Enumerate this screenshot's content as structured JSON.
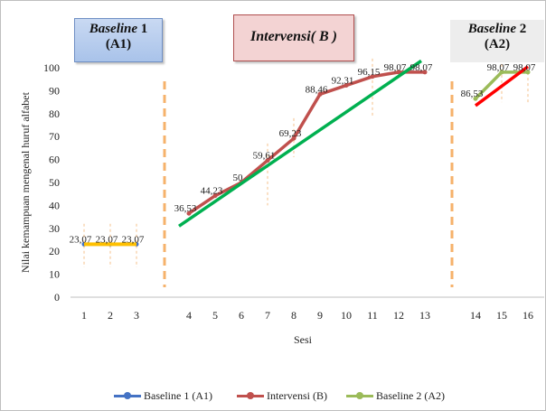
{
  "chart_data": {
    "type": "line",
    "xlabel": "Sesi",
    "ylabel": "Nilai kemampuan mengenal huruf alfabet",
    "ylim": [
      0,
      100
    ],
    "yticks": [
      0,
      10,
      20,
      30,
      40,
      50,
      60,
      70,
      80,
      90,
      100
    ],
    "xticks": [
      1,
      2,
      3,
      4,
      5,
      6,
      7,
      8,
      9,
      10,
      11,
      12,
      13,
      14,
      15,
      16
    ],
    "grid": false,
    "legend_position": "bottom",
    "phases": [
      {
        "title": "Baseline",
        "number": "1",
        "code": "(A1)"
      },
      {
        "title": "Intervensi( B )"
      },
      {
        "title": "Baseline",
        "number": "2",
        "code": "(A2)"
      }
    ],
    "series": [
      {
        "name": "Baseline 1 (A1)",
        "color": "#4472c4",
        "x": [
          1,
          2,
          3
        ],
        "y": [
          23.07,
          23.07,
          23.07
        ],
        "labels": [
          "23,07",
          "23,07",
          "23,07"
        ]
      },
      {
        "name": "Intervensi (B)",
        "color": "#c0504d",
        "x": [
          4,
          5,
          6,
          7,
          8,
          9,
          10,
          11,
          12,
          13
        ],
        "y": [
          36.53,
          44.23,
          50,
          59.61,
          69.23,
          88.46,
          92.31,
          96.15,
          98.07,
          98.07
        ],
        "labels": [
          "36,53",
          "44,23",
          "50",
          "59,61",
          "69,23",
          "88,46",
          "92,31",
          "96,15",
          "98,07",
          "98,07"
        ]
      },
      {
        "name": "Baseline 2 (A2)",
        "color": "#9bbb59",
        "x": [
          14,
          15,
          16
        ],
        "y": [
          86.53,
          98.07,
          98.07
        ],
        "labels": [
          "86,53",
          "98,07",
          "98,07"
        ]
      }
    ],
    "trendlines": [
      {
        "phase": "A1",
        "color": "#ffc000",
        "x": [
          1,
          3
        ],
        "y": [
          23.07,
          23.07
        ]
      },
      {
        "phase": "B",
        "color": "#00b050",
        "x": [
          4,
          13
        ],
        "y": [
          31,
          103
        ]
      },
      {
        "phase": "A2",
        "color": "#ff0000",
        "x": [
          14,
          16
        ],
        "y": [
          83.5,
          100.5
        ]
      }
    ],
    "phase_separators_after_x": [
      3,
      13
    ]
  }
}
